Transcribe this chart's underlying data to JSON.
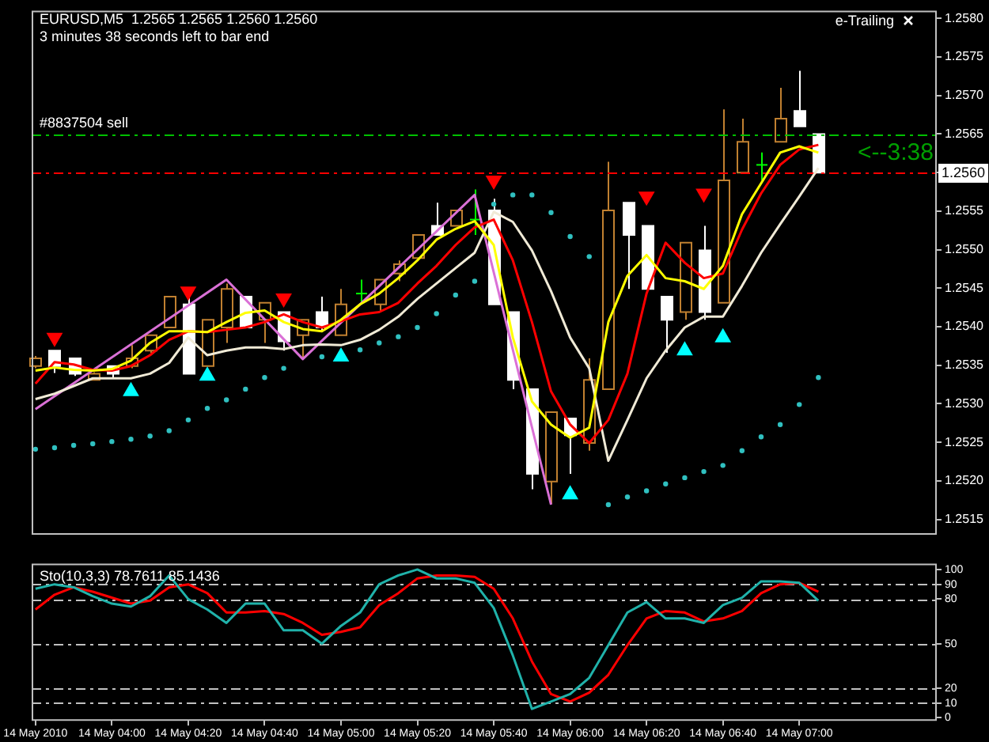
{
  "chart_data": [
    {
      "type": "candlestick",
      "title": "EURUSD,M5  1.2565 1.2565 1.2560 1.2560",
      "subtitle": "3 minutes 38 seconds left to bar end",
      "annotations": [
        "e-Trailing",
        "<--3:38"
      ],
      "x": [
        "2010-05-14T03:40",
        "2010-05-14T03:45",
        "2010-05-14T03:50",
        "2010-05-14T03:55",
        "2010-05-14T04:00",
        "2010-05-14T04:05",
        "2010-05-14T04:10",
        "2010-05-14T04:15",
        "2010-05-14T04:20",
        "2010-05-14T04:25",
        "2010-05-14T04:30",
        "2010-05-14T04:35",
        "2010-05-14T04:40",
        "2010-05-14T04:45",
        "2010-05-14T04:50",
        "2010-05-14T04:55",
        "2010-05-14T05:00",
        "2010-05-14T05:05",
        "2010-05-14T05:10",
        "2010-05-14T05:15",
        "2010-05-14T05:20",
        "2010-05-14T05:25",
        "2010-05-14T05:30",
        "2010-05-14T05:35",
        "2010-05-14T05:40",
        "2010-05-14T05:45",
        "2010-05-14T05:50",
        "2010-05-14T05:55",
        "2010-05-14T06:00",
        "2010-05-14T06:05",
        "2010-05-14T06:10",
        "2010-05-14T06:15",
        "2010-05-14T06:20",
        "2010-05-14T06:25",
        "2010-05-14T06:30",
        "2010-05-14T06:35",
        "2010-05-14T06:40",
        "2010-05-14T06:45",
        "2010-05-14T06:50",
        "2010-05-14T06:55",
        "2010-05-14T07:00",
        "2010-05-14T07:05"
      ],
      "ohlc": [
        [
          1.25349,
          1.25362,
          1.25346,
          1.25359
        ],
        [
          1.25369,
          1.25369,
          1.2534,
          1.25349
        ],
        [
          1.25359,
          1.25359,
          1.25336,
          1.25339
        ],
        [
          1.25331,
          1.25341,
          1.25331,
          1.25339
        ],
        [
          1.25349,
          1.25349,
          1.25333,
          1.25339
        ],
        [
          1.25349,
          1.25376,
          1.25346,
          1.25359
        ],
        [
          1.25369,
          1.25389,
          1.25366,
          1.25389
        ],
        [
          1.25399,
          1.25439,
          1.25399,
          1.25439
        ],
        [
          1.25429,
          1.25439,
          1.25339,
          1.25339
        ],
        [
          1.25349,
          1.25409,
          1.25349,
          1.25409
        ],
        [
          1.25399,
          1.25456,
          1.25379,
          1.25449
        ],
        [
          1.25439,
          1.25439,
          1.25399,
          1.25399
        ],
        [
          1.25409,
          1.25431,
          1.25379,
          1.25431
        ],
        [
          1.25419,
          1.25419,
          1.25369,
          1.25381
        ],
        [
          1.25389,
          1.25409,
          1.2536,
          1.25409
        ],
        [
          1.25419,
          1.25439,
          1.25393,
          1.25399
        ],
        [
          1.25389,
          1.25449,
          1.25389,
          1.25429
        ],
        [
          1.25443,
          1.25461,
          1.25429,
          1.25443
        ],
        [
          1.25429,
          1.25461,
          1.25419,
          1.25461
        ],
        [
          1.25469,
          1.25486,
          1.25459,
          1.25481
        ],
        [
          1.25489,
          1.25519,
          1.25489,
          1.25519
        ],
        [
          1.25531,
          1.25561,
          1.25519,
          1.25519
        ],
        [
          1.25531,
          1.25551,
          1.25531,
          1.25551
        ],
        [
          1.25539,
          1.25578,
          1.25519,
          1.25539
        ],
        [
          1.25551,
          1.25566,
          1.25429,
          1.25429
        ],
        [
          1.25419,
          1.25419,
          1.25319,
          1.25331
        ],
        [
          1.25319,
          1.25319,
          1.25189,
          1.25209
        ],
        [
          1.25199,
          1.25289,
          1.2517,
          1.25289
        ],
        [
          1.25281,
          1.25281,
          1.25209,
          1.25259
        ],
        [
          1.25249,
          1.25359,
          1.25239,
          1.25331
        ],
        [
          1.25319,
          1.25614,
          1.25319,
          1.25551
        ],
        [
          1.25561,
          1.25561,
          1.25449,
          1.25519
        ],
        [
          1.25531,
          1.25531,
          1.25449,
          1.25449
        ],
        [
          1.25439,
          1.25439,
          1.25366,
          1.25409
        ],
        [
          1.25419,
          1.25509,
          1.25409,
          1.25509
        ],
        [
          1.25499,
          1.25531,
          1.25409,
          1.25419
        ],
        [
          1.25431,
          1.25682,
          1.25431,
          1.2559
        ],
        [
          1.256,
          1.2567,
          1.256,
          1.2564
        ],
        [
          1.2561,
          1.25626,
          1.2559,
          1.2561
        ],
        [
          1.2564,
          1.2571,
          1.2564,
          1.2567
        ],
        [
          1.2568,
          1.25732,
          1.2566,
          1.2566
        ],
        [
          1.2565,
          1.2565,
          1.256,
          1.256
        ]
      ],
      "series": [
        {
          "type": "line",
          "color": "#ffff00",
          "values": [
            1.25343,
            1.25347,
            1.25344,
            1.25343,
            1.25345,
            1.25356,
            1.25379,
            1.25394,
            1.25394,
            1.25393,
            1.25406,
            1.25418,
            1.25421,
            1.25406,
            1.25397,
            1.25394,
            1.25409,
            1.25429,
            1.25443,
            1.25463,
            1.25486,
            1.25513,
            1.25527,
            1.25537,
            1.25506,
            1.25386,
            1.25303,
            1.25273,
            1.25256,
            1.25269,
            1.25406,
            1.25466,
            1.25493,
            1.25463,
            1.25459,
            1.25449,
            1.25479,
            1.25546,
            1.25586,
            1.25626,
            1.25634,
            1.25626
          ]
        },
        {
          "type": "line",
          "color": "#ff0000",
          "values": [
            1.25326,
            1.25354,
            1.25351,
            1.25344,
            1.25343,
            1.25349,
            1.25363,
            1.25383,
            1.25394,
            1.25393,
            1.25396,
            1.25399,
            1.25406,
            1.25416,
            1.25406,
            1.25399,
            1.25407,
            1.25416,
            1.25419,
            1.25431,
            1.25456,
            1.25479,
            1.25506,
            1.25529,
            1.25539,
            1.25486,
            1.25406,
            1.25316,
            1.25273,
            1.25249,
            1.25279,
            1.25339,
            1.25443,
            1.25509,
            1.25483,
            1.25463,
            1.25469,
            1.25526,
            1.25573,
            1.2561,
            1.2563,
            1.25636
          ]
        },
        {
          "type": "line",
          "color": "#f0ead6",
          "values": [
            1.25306,
            1.25313,
            1.25323,
            1.25333,
            1.25333,
            1.25333,
            1.25339,
            1.25353,
            1.25386,
            1.25363,
            1.25369,
            1.25373,
            1.25373,
            1.25371,
            1.25376,
            1.25377,
            1.25376,
            1.25383,
            1.25396,
            1.25413,
            1.25436,
            1.25456,
            1.25476,
            1.25496,
            1.25549,
            1.25536,
            1.25499,
            1.25446,
            1.25386,
            1.25346,
            1.25226,
            1.25279,
            1.25333,
            1.25369,
            1.25399,
            1.25413,
            1.25413,
            1.25453,
            1.25496,
            1.25533,
            1.25569,
            1.25606
          ]
        },
        {
          "type": "line",
          "color": "#da70d6",
          "x": [
            "2010-05-14T03:40",
            "2010-05-14T04:30",
            "2010-05-14T04:50",
            "2010-05-14T05:35",
            "2010-05-14T05:55"
          ],
          "values": [
            1.25293,
            1.25461,
            1.25358,
            1.25571,
            1.25169
          ]
        },
        {
          "type": "scatter",
          "marker": "circle",
          "color": "#30c0c0",
          "values": [
            1.25241,
            1.25243,
            1.25246,
            1.25248,
            1.25251,
            1.25254,
            1.25258,
            1.25265,
            1.25279,
            1.25294,
            1.25305,
            1.25319,
            1.25334,
            1.25346,
            null,
            1.25361,
            null,
            1.2537,
            1.25379,
            1.25387,
            1.25399,
            1.25417,
            1.25441,
            1.25459,
            1.25559,
            1.25571,
            1.25571,
            1.25548,
            1.25517,
            1.25491,
            1.25169,
            1.25179,
            1.25187,
            1.25196,
            1.25204,
            1.25212,
            1.2522,
            1.25239,
            1.25257,
            1.25273,
            1.25299,
            1.25334
          ]
        },
        {
          "type": "scatter",
          "marker": "triangle",
          "color": "#ff0000",
          "x": [
            "2010-05-14T03:45",
            "2010-05-14T04:20",
            "2010-05-14T04:45",
            "2010-05-14T05:40",
            "2010-05-14T06:20",
            "2010-05-14T06:35"
          ],
          "values": [
            1.25386,
            1.25446,
            1.25437,
            1.2559,
            1.25569,
            1.25573
          ]
        },
        {
          "type": "scatter",
          "marker": "triangle",
          "color": "#00ffff",
          "x": [
            "2010-05-14T04:05",
            "2010-05-14T04:25",
            "2010-05-14T05:00",
            "2010-05-14T06:00",
            "2010-05-14T06:30",
            "2010-05-14T06:40"
          ],
          "values": [
            1.25316,
            1.25336,
            1.25361,
            1.25182,
            1.25369,
            1.25386
          ]
        }
      ],
      "xlim": [
        "2010-05-14T03:39",
        "2010-05-14T07:36"
      ],
      "ylim": [
        1.2513,
        1.2581
      ],
      "yticks": [
        {
          "value": 1.2515,
          "label": "1.2515"
        },
        {
          "value": 1.252,
          "label": "1.2520"
        },
        {
          "value": 1.2525,
          "label": "1.2525"
        },
        {
          "value": 1.253,
          "label": "1.2530"
        },
        {
          "value": 1.2535,
          "label": "1.2535"
        },
        {
          "value": 1.254,
          "label": "1.2540"
        },
        {
          "value": 1.2545,
          "label": "1.2545"
        },
        {
          "value": 1.255,
          "label": "1.2550"
        },
        {
          "value": 1.2555,
          "label": "1.2555"
        },
        {
          "value": 1.256,
          "label": null
        },
        {
          "value": 1.2565,
          "label": "1.2565"
        },
        {
          "value": 1.257,
          "label": "1.2570"
        },
        {
          "value": 1.2575,
          "label": "1.2575"
        },
        {
          "value": 1.258,
          "label": "1.2580"
        }
      ],
      "ref_lines": [
        {
          "axis": "y",
          "value": 1.2565,
          "label": "#8837504 sell",
          "color": "#00c000",
          "line_style": "dashed"
        },
        {
          "axis": "y",
          "value": 1.256,
          "label": "1.2560",
          "color": "#ff0000",
          "line_style": "dashed"
        }
      ],
      "tick_labels": "y"
    },
    {
      "type": "line",
      "title": "Sto(10,3,3) 78.7611 85.1436",
      "x": [
        "2010-05-14T03:40",
        "2010-05-14T03:45",
        "2010-05-14T03:50",
        "2010-05-14T03:55",
        "2010-05-14T04:00",
        "2010-05-14T04:05",
        "2010-05-14T04:10",
        "2010-05-14T04:15",
        "2010-05-14T04:20",
        "2010-05-14T04:25",
        "2010-05-14T04:30",
        "2010-05-14T04:35",
        "2010-05-14T04:40",
        "2010-05-14T04:45",
        "2010-05-14T04:50",
        "2010-05-14T04:55",
        "2010-05-14T05:00",
        "2010-05-14T05:05",
        "2010-05-14T05:10",
        "2010-05-14T05:15",
        "2010-05-14T05:20",
        "2010-05-14T05:25",
        "2010-05-14T05:30",
        "2010-05-14T05:35",
        "2010-05-14T05:40",
        "2010-05-14T05:45",
        "2010-05-14T05:50",
        "2010-05-14T05:55",
        "2010-05-14T06:00",
        "2010-05-14T06:05",
        "2010-05-14T06:10",
        "2010-05-14T06:15",
        "2010-05-14T06:20",
        "2010-05-14T06:25",
        "2010-05-14T06:30",
        "2010-05-14T06:35",
        "2010-05-14T06:40",
        "2010-05-14T06:45",
        "2010-05-14T06:50",
        "2010-05-14T06:55",
        "2010-05-14T07:00",
        "2010-05-14T07:05"
      ],
      "series": [
        {
          "color": "#20b2aa",
          "values": [
            87,
            90,
            88,
            82,
            77,
            75,
            82,
            96,
            80,
            73,
            64,
            77,
            77,
            59,
            59,
            50,
            62,
            71,
            90,
            96,
            100,
            94,
            94,
            91,
            74,
            42,
            6,
            11,
            16,
            27,
            49,
            71,
            78,
            67,
            67,
            64,
            76,
            81,
            92,
            92,
            91,
            79
          ]
        },
        {
          "color": "#ff0000",
          "values": [
            73,
            83,
            88,
            85,
            81,
            77,
            79,
            88,
            90,
            84,
            71,
            71,
            72,
            70,
            64,
            56,
            58,
            61,
            76,
            84,
            94,
            96,
            96,
            95,
            87,
            67,
            38,
            16,
            11,
            17,
            29,
            49,
            67,
            72,
            71,
            65,
            67,
            72,
            84,
            90,
            91,
            85
          ]
        }
      ],
      "xlim": [
        "2010-05-14T03:39",
        "2010-05-14T07:36"
      ],
      "ylim": [
        -2,
        104
      ],
      "yticks": [
        0,
        10,
        20,
        50,
        80,
        90,
        100
      ],
      "xticks": [
        {
          "value": "2010-05-14T03:40",
          "label": "14 May 2010"
        },
        {
          "value": "2010-05-14T04:00",
          "label": "14 May 04:00"
        },
        {
          "value": "2010-05-14T04:20",
          "label": "14 May 04:20"
        },
        {
          "value": "2010-05-14T04:40",
          "label": "14 May 04:40"
        },
        {
          "value": "2010-05-14T05:00",
          "label": "14 May 05:00"
        },
        {
          "value": "2010-05-14T05:20",
          "label": "14 May 05:20"
        },
        {
          "value": "2010-05-14T05:40",
          "label": "14 May 05:40"
        },
        {
          "value": "2010-05-14T06:00",
          "label": "14 May 06:00"
        },
        {
          "value": "2010-05-14T06:20",
          "label": "14 May 06:20"
        },
        {
          "value": "2010-05-14T06:40",
          "label": "14 May 06:40"
        },
        {
          "value": "2010-05-14T07:00",
          "label": "14 May 07:00"
        }
      ],
      "ref_lines": [
        {
          "axis": "y",
          "value": 90,
          "color": "#c0c0c0",
          "line_style": "dashed"
        },
        {
          "axis": "y",
          "value": 80,
          "color": "#c0c0c0",
          "line_style": "dashed"
        },
        {
          "axis": "y",
          "value": 50,
          "color": "#c0c0c0",
          "line_style": "dashed"
        },
        {
          "axis": "y",
          "value": 20,
          "color": "#c0c0c0",
          "line_style": "dashed"
        },
        {
          "axis": "y",
          "value": 10,
          "color": "#c0c0c0",
          "line_style": "dashed"
        }
      ]
    }
  ]
}
